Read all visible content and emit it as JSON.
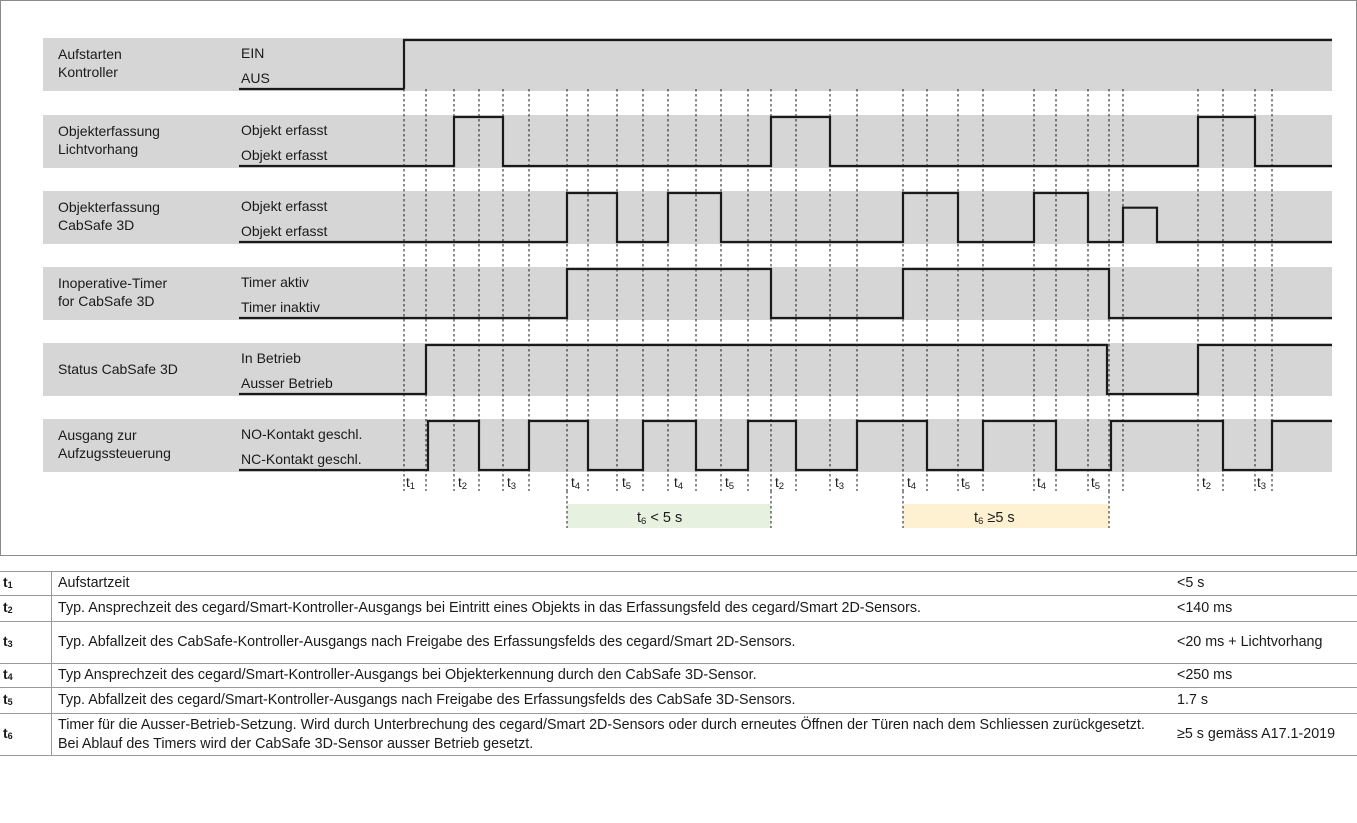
{
  "rows": [
    {
      "label": "Aufstarten\nKontroller",
      "high_state": "EIN",
      "low_state": "AUS",
      "waveform": [
        [
          403,
          0
        ],
        [
          403,
          1
        ],
        [
          1331,
          1
        ]
      ]
    },
    {
      "label": "Objekterfassung\nLichtvorhang",
      "high_state": "Objekt erfasst",
      "low_state": "Objekt erfasst",
      "waveform": [
        [
          403,
          0
        ],
        [
          453,
          0
        ],
        [
          453,
          1
        ],
        [
          502,
          1
        ],
        [
          502,
          0
        ],
        [
          770,
          0
        ],
        [
          770,
          1
        ],
        [
          829,
          1
        ],
        [
          829,
          0
        ],
        [
          1197,
          0
        ],
        [
          1197,
          1
        ],
        [
          1254,
          1
        ],
        [
          1254,
          0
        ],
        [
          1331,
          0
        ]
      ]
    },
    {
      "label": "Objekterfassung\nCabSafe 3D",
      "high_state": "Objekt erfasst",
      "low_state": "Objekt erfasst",
      "waveform": [
        [
          403,
          0
        ],
        [
          566,
          0
        ],
        [
          566,
          1
        ],
        [
          616,
          1
        ],
        [
          616,
          0
        ],
        [
          667,
          0
        ],
        [
          667,
          1
        ],
        [
          720,
          1
        ],
        [
          720,
          0
        ],
        [
          902,
          0
        ],
        [
          902,
          1
        ],
        [
          957,
          1
        ],
        [
          957,
          0
        ],
        [
          1033,
          0
        ],
        [
          1033,
          1
        ],
        [
          1087,
          1
        ],
        [
          1087,
          0
        ],
        [
          1122,
          0
        ],
        [
          1122,
          0.7
        ],
        [
          1156,
          0.7
        ],
        [
          1156,
          0
        ],
        [
          1331,
          0
        ]
      ]
    },
    {
      "label": "Inoperative-Timer\nfor CabSafe 3D",
      "high_state": "Timer aktiv",
      "low_state": "Timer inaktiv",
      "waveform": [
        [
          403,
          0
        ],
        [
          566,
          0
        ],
        [
          566,
          1
        ],
        [
          770,
          1
        ],
        [
          770,
          0
        ],
        [
          902,
          0
        ],
        [
          902,
          1
        ],
        [
          1108,
          1
        ],
        [
          1108,
          0
        ],
        [
          1331,
          0
        ]
      ]
    },
    {
      "label": "Status CabSafe 3D",
      "high_state": "In Betrieb",
      "low_state": "Ausser Betrieb",
      "waveform": [
        [
          403,
          0
        ],
        [
          425,
          0
        ],
        [
          425,
          1
        ],
        [
          1106,
          1
        ],
        [
          1106,
          0
        ],
        [
          1197,
          0
        ],
        [
          1197,
          1
        ],
        [
          1331,
          1
        ]
      ]
    },
    {
      "label": "Ausgang zur\nAufzugssteuerung",
      "high_state": "NO-Kontakt geschl.",
      "low_state": "NC-Kontakt geschl.",
      "waveform": [
        [
          403,
          0
        ],
        [
          427,
          0
        ],
        [
          427,
          1
        ],
        [
          478,
          1
        ],
        [
          478,
          0
        ],
        [
          528,
          0
        ],
        [
          528,
          1
        ],
        [
          587,
          1
        ],
        [
          587,
          0
        ],
        [
          642,
          0
        ],
        [
          642,
          1
        ],
        [
          695,
          1
        ],
        [
          695,
          0
        ],
        [
          747,
          0
        ],
        [
          747,
          1
        ],
        [
          795,
          1
        ],
        [
          795,
          0
        ],
        [
          856,
          0
        ],
        [
          856,
          1
        ],
        [
          926,
          1
        ],
        [
          926,
          0
        ],
        [
          982,
          0
        ],
        [
          982,
          1
        ],
        [
          1055,
          1
        ],
        [
          1055,
          0
        ],
        [
          1110,
          0
        ],
        [
          1110,
          1
        ],
        [
          1222,
          1
        ],
        [
          1222,
          0
        ],
        [
          1271,
          0
        ],
        [
          1271,
          1
        ],
        [
          1331,
          1
        ]
      ]
    }
  ],
  "time_markers": [
    {
      "main": "t",
      "sub": "1"
    },
    {
      "main": "t",
      "sub": "2"
    },
    {
      "main": "t",
      "sub": "3"
    },
    {
      "main": "t",
      "sub": "4"
    },
    {
      "main": "t",
      "sub": "5"
    },
    {
      "main": "t",
      "sub": "4"
    },
    {
      "main": "t",
      "sub": "5"
    },
    {
      "main": "t",
      "sub": "2"
    },
    {
      "main": "t",
      "sub": "3"
    },
    {
      "main": "t",
      "sub": "4"
    },
    {
      "main": "t",
      "sub": "5"
    },
    {
      "main": "t",
      "sub": "4"
    },
    {
      "main": "t",
      "sub": "5"
    },
    {
      "main": "t",
      "sub": "2"
    },
    {
      "main": "t",
      "sub": "3"
    }
  ],
  "durations": [
    {
      "main": "t",
      "sub": "6",
      "rest": " < 5 s",
      "color": "#e6f1df"
    },
    {
      "main": "t",
      "sub": "6",
      "rest": " ≥5 s",
      "color": "#fdf1d2"
    }
  ],
  "legend": [
    {
      "main": "t",
      "sub": "1",
      "description": "Aufstartzeit",
      "value": "<5 s"
    },
    {
      "main": "t",
      "sub": "2",
      "description": "Typ. Ansprechzeit des cegard/Smart-Kontroller-Ausgangs bei Eintritt eines Objekts in das Erfassungsfeld des cegard/Smart 2D-Sensors.",
      "value": "<140 ms"
    },
    {
      "main": "t",
      "sub": "3",
      "description": "Typ. Abfallzeit des CabSafe-Kontroller-Ausgangs nach Freigabe des Erfassungsfelds des cegard/Smart 2D-Sensors.",
      "value": "<20 ms + Lichtvorhang"
    },
    {
      "main": "t",
      "sub": "4",
      "description": "Typ Ansprechzeit des cegard/Smart-Kontroller-Ausgangs bei Objekterkennung durch den CabSafe 3D-Sensor.",
      "value": "<250 ms"
    },
    {
      "main": "t",
      "sub": "5",
      "description": "Typ. Abfallzeit des cegard/Smart-Kontroller-Ausgangs nach Freigabe des Erfassungsfelds des CabSafe 3D-Sensors.",
      "value": "1.7 s"
    },
    {
      "main": "t",
      "sub": "6",
      "description": "Timer für die Ausser-Betrieb-Setzung. Wird durch Unterbrechung des cegard/Smart 2D-Sensors oder durch erneutes Öffnen der Türen nach dem Schliessen zurückgesetzt. Bei Ablauf des Timers wird der CabSafe 3D-Sensor ausser Betrieb gesetzt.",
      "value": "≥5 s gemäss A17.1-2019"
    }
  ]
}
